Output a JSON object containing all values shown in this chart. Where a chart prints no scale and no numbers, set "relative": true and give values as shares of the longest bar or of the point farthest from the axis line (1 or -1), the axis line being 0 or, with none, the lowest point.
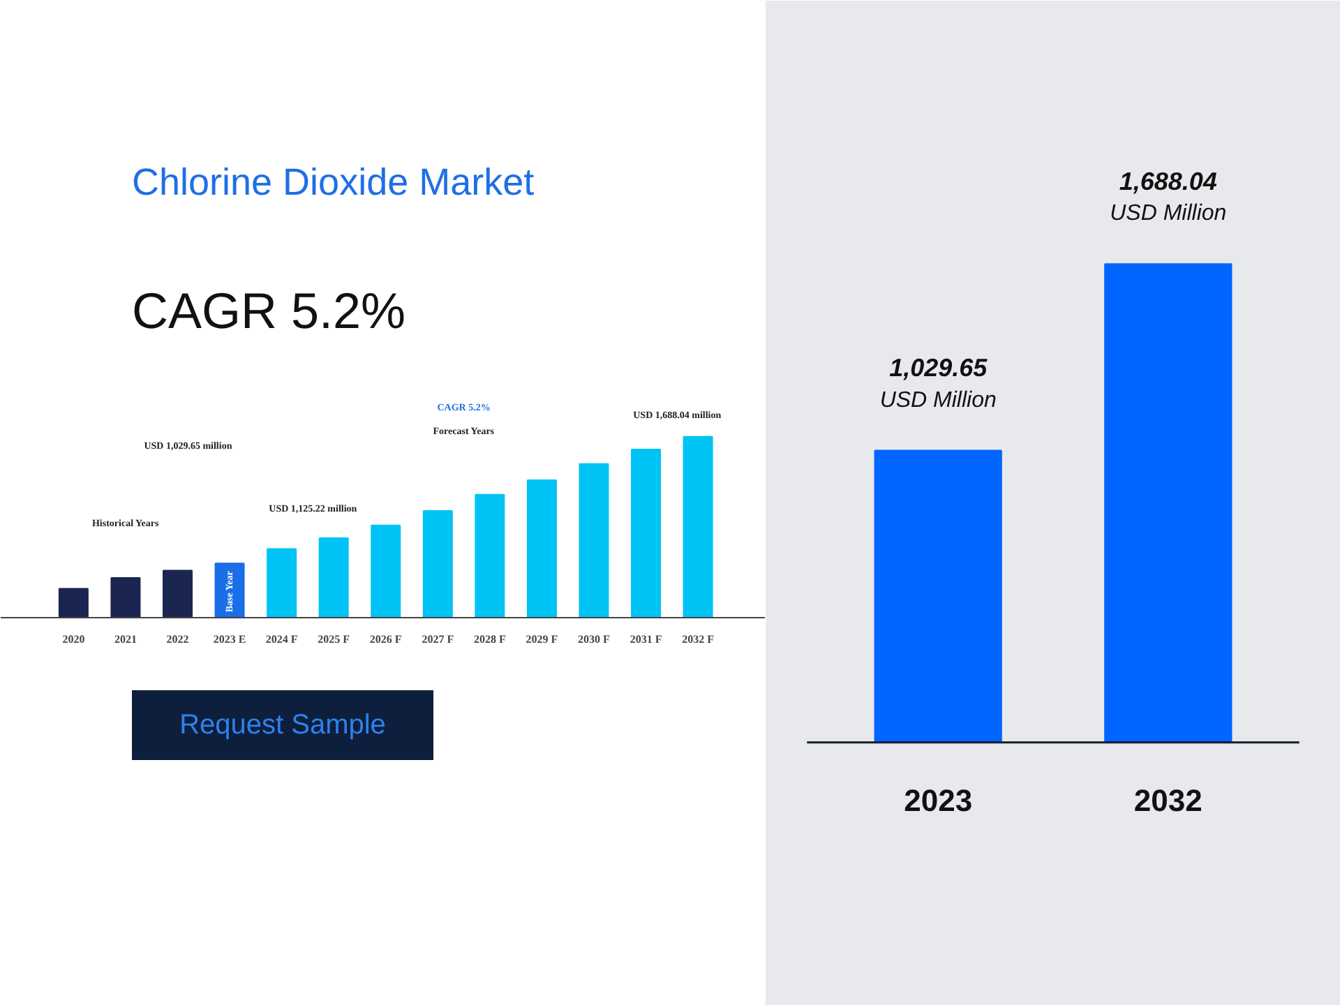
{
  "chart_data": [
    {
      "type": "other",
      "title": "Chlorine Dioxide Market",
      "subtitle": "CAGR 5.2%",
      "annotations": [
        "Request Sample"
      ]
    },
    {
      "type": "bar",
      "relative": true,
      "categories": [
        "2020",
        "2021",
        "2022",
        "2023 E",
        "2024 F",
        "2025 F",
        "2026 F",
        "2027 F",
        "2028 F",
        "2029 F",
        "2030 F",
        "2031 F",
        "2032 F"
      ],
      "values": [
        0.16,
        0.22,
        0.26,
        0.3,
        0.38,
        0.44,
        0.51,
        0.59,
        0.68,
        0.76,
        0.85,
        0.93,
        1
      ],
      "colors": [
        "#1a2650",
        "#1a2650",
        "#1a2650",
        "#1a6fe8",
        "#00c3f5",
        "#00c3f5",
        "#00c3f5",
        "#00c3f5",
        "#00c3f5",
        "#00c3f5",
        "#00c3f5",
        "#00c3f5",
        "#00c3f5"
      ],
      "annotations": [
        "USD 1,029.65 million",
        "USD 1,125.22 million",
        "USD 1,688.04 million",
        "Historical Years",
        "CAGR 5.2%",
        "Forecast Years",
        "Base Year"
      ]
    },
    {
      "type": "bar",
      "categories": [
        "2023",
        "2032"
      ],
      "values": [
        1029.65,
        1688.04
      ],
      "color": "#0066ff",
      "value_labels": [
        "1,029.65\nUSD Million",
        "1,688.04\nUSD Million"
      ]
    }
  ]
}
